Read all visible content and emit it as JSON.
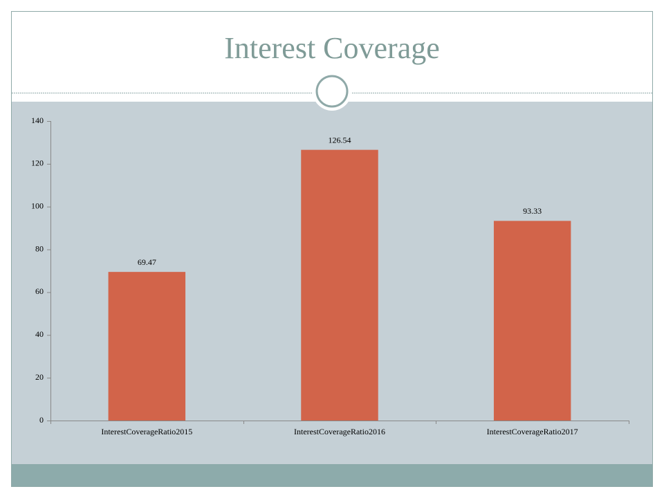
{
  "chart_data": {
    "type": "bar",
    "title": "Interest Coverage",
    "categories": [
      "InterestCoverageRatio2015",
      "InterestCoverageRatio2016",
      "InterestCoverageRatio2017"
    ],
    "values": [
      69.47,
      126.54,
      93.33
    ],
    "color": "#d2644a",
    "ylim": [
      0,
      140
    ],
    "yticks": [
      0,
      20,
      40,
      60,
      80,
      100,
      120,
      140
    ],
    "grid": false
  }
}
